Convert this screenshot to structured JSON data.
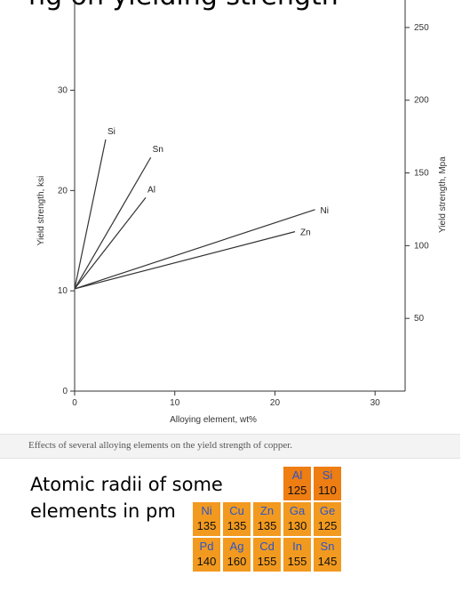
{
  "heading": "ng on yielding strength",
  "chart_data": {
    "type": "line",
    "xlabel": "Alloying element, wt%",
    "ylabel": "Yield strength, ksi",
    "y2label": "Yield strength, Mpa",
    "xlim": [
      0,
      33
    ],
    "ylim": [
      0,
      39
    ],
    "y2lim": [
      0,
      268.9
    ],
    "xticks": [
      0,
      10,
      20,
      30
    ],
    "yticks": [
      0,
      10,
      20,
      30
    ],
    "y2ticks": [
      50,
      100,
      150,
      200,
      250
    ],
    "grid": false,
    "series": [
      {
        "name": "Si",
        "x": [
          0,
          3.1
        ],
        "y": [
          10.2,
          25.1
        ]
      },
      {
        "name": "Sn",
        "x": [
          0,
          7.6
        ],
        "y": [
          10.2,
          23.3
        ]
      },
      {
        "name": "Al",
        "x": [
          0,
          7.1
        ],
        "y": [
          10.2,
          19.3
        ]
      },
      {
        "name": "Ni",
        "x": [
          0,
          24.0
        ],
        "y": [
          10.2,
          18.1
        ]
      },
      {
        "name": "Zn",
        "x": [
          0,
          22.0
        ],
        "y": [
          10.2,
          15.9
        ]
      }
    ]
  },
  "caption": "Effects of several alloying elements on the yield strength of copper.",
  "radii": {
    "title": "Atomic radii of some elements in pm",
    "cells": [
      {
        "symbol": "Al",
        "radius": "125",
        "row": 0,
        "col": 3,
        "shade": "dark"
      },
      {
        "symbol": "Si",
        "radius": "110",
        "row": 0,
        "col": 4,
        "shade": "dark"
      },
      {
        "symbol": "Ni",
        "radius": "135",
        "row": 1,
        "col": 0,
        "shade": "light"
      },
      {
        "symbol": "Cu",
        "radius": "135",
        "row": 1,
        "col": 1,
        "shade": "light"
      },
      {
        "symbol": "Zn",
        "radius": "135",
        "row": 1,
        "col": 2,
        "shade": "light"
      },
      {
        "symbol": "Ga",
        "radius": "130",
        "row": 1,
        "col": 3,
        "shade": "light"
      },
      {
        "symbol": "Ge",
        "radius": "125",
        "row": 1,
        "col": 4,
        "shade": "light"
      },
      {
        "symbol": "Pd",
        "radius": "140",
        "row": 2,
        "col": 0,
        "shade": "light"
      },
      {
        "symbol": "Ag",
        "radius": "160",
        "row": 2,
        "col": 1,
        "shade": "light"
      },
      {
        "symbol": "Cd",
        "radius": "155",
        "row": 2,
        "col": 2,
        "shade": "light"
      },
      {
        "symbol": "In",
        "radius": "155",
        "row": 2,
        "col": 3,
        "shade": "light"
      },
      {
        "symbol": "Sn",
        "radius": "145",
        "row": 2,
        "col": 4,
        "shade": "light"
      }
    ]
  },
  "colors": {
    "cell_light": "#f29a1f",
    "cell_dark": "#ee7d12",
    "symbol_text": "#2a55c8",
    "line": "#333333"
  }
}
